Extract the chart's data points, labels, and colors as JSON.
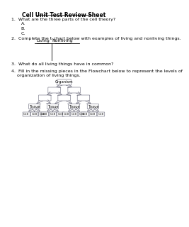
{
  "title": "Cell Unit Test Review Sheet",
  "q1_text": "1.  What are the three parts of the cell theory?",
  "q1_labels": [
    "A.",
    "B.",
    "C."
  ],
  "q2_text": "2.  Complete the t-chart below with examples of living and nonliving things.",
  "q2_col1": "Living",
  "q2_col2": "Nonliving",
  "q3_text": "3.  What do all living things have in common?",
  "q4_line1": "4.  Fill in the missing pieces in the Flowchart below to represent the levels of",
  "q4_line2": "    organization of living things.",
  "organism_label": "Organism",
  "tissue_label": "Tissue",
  "cell_label": "Cell",
  "bg_color": "#ffffff",
  "text_color": "#000000",
  "box_edge_color": "#666677"
}
